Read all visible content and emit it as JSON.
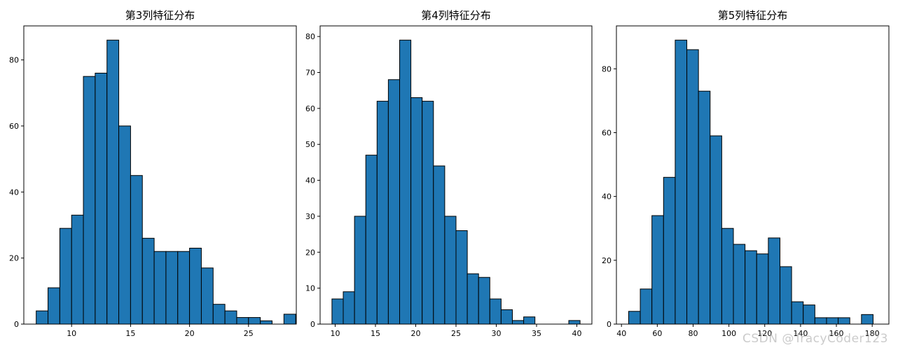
{
  "chart_data": [
    {
      "type": "bar",
      "title": "第3列特征分布",
      "xlabel": "",
      "ylabel": "",
      "bin_start": 7.0,
      "bin_width": 1.0,
      "values": [
        4,
        11,
        29,
        33,
        75,
        76,
        86,
        60,
        45,
        26,
        22,
        22,
        22,
        23,
        17,
        6,
        4,
        2,
        2,
        1,
        0,
        3
      ],
      "xlim": [
        5.95,
        29.05
      ],
      "ylim": [
        0,
        90.3
      ],
      "xticks": [
        10,
        15,
        20,
        25
      ],
      "yticks": [
        0,
        20,
        40,
        60,
        80
      ],
      "grid": false
    },
    {
      "type": "bar",
      "title": "第4列特征分布",
      "xlabel": "",
      "ylabel": "",
      "bin_start": 9.6,
      "bin_width": 1.4,
      "values": [
        7,
        9,
        30,
        47,
        62,
        68,
        79,
        63,
        62,
        44,
        30,
        26,
        14,
        13,
        7,
        4,
        1,
        2,
        0,
        0,
        0,
        1
      ],
      "xlim": [
        8.13,
        41.87
      ],
      "ylim": [
        0,
        82.95
      ],
      "xticks": [
        10,
        15,
        20,
        25,
        30,
        35,
        40
      ],
      "yticks": [
        0,
        10,
        20,
        30,
        40,
        50,
        60,
        70,
        80
      ],
      "grid": false
    },
    {
      "type": "bar",
      "title": "第5列特征分布",
      "xlabel": "",
      "ylabel": "",
      "bin_start": 44.0,
      "bin_width": 6.5,
      "values": [
        4,
        11,
        34,
        46,
        89,
        86,
        73,
        59,
        30,
        25,
        23,
        22,
        27,
        18,
        7,
        6,
        2,
        2,
        2,
        0,
        3
      ],
      "xlim": [
        37.18,
        189.32
      ],
      "ylim": [
        0,
        93.45
      ],
      "xticks": [
        40,
        60,
        80,
        100,
        120,
        140,
        160,
        180
      ],
      "yticks": [
        0,
        20,
        40,
        60,
        80
      ],
      "grid": false
    }
  ],
  "style": {
    "bar_color": "#1f77b4",
    "edge_color": "#000000"
  },
  "watermark": "CSDN @TracyCoder123"
}
